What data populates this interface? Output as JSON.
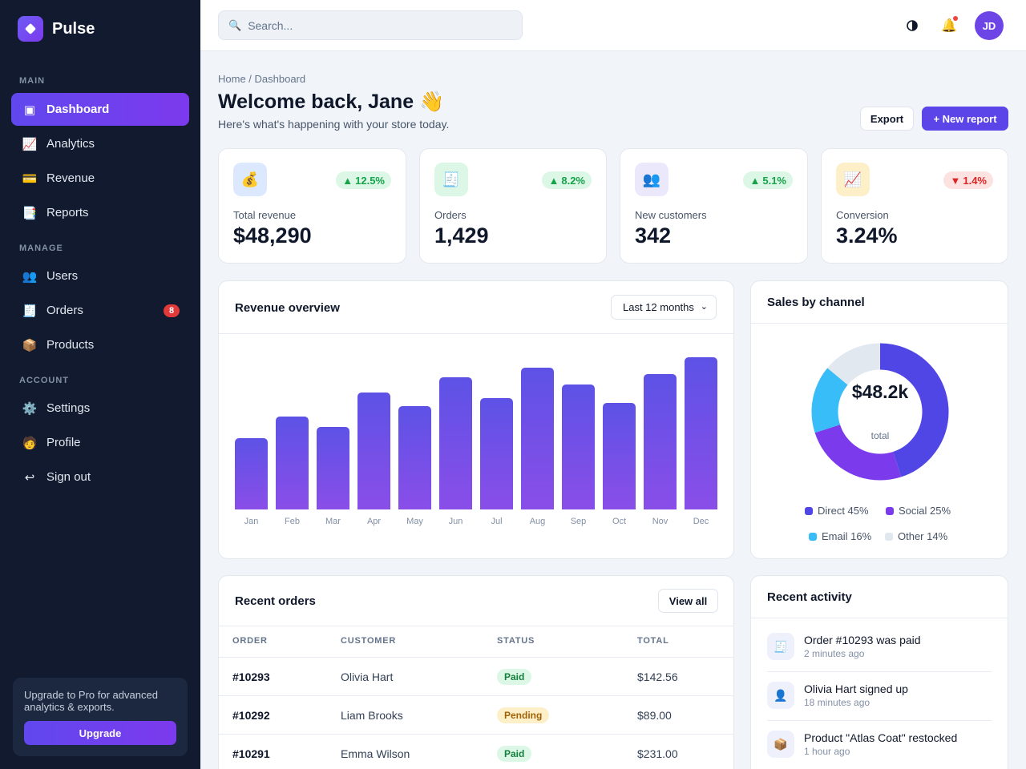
{
  "brand": {
    "name": "Pulse"
  },
  "sidebar": {
    "sections": [
      "MAIN",
      "MANAGE",
      "ACCOUNT"
    ],
    "items": [
      {
        "label": "Dashboard",
        "icon": "dashboard-icon",
        "active": true
      },
      {
        "label": "Analytics",
        "icon": "chart-icon"
      },
      {
        "label": "Revenue",
        "icon": "card-icon"
      },
      {
        "label": "Reports",
        "icon": "report-icon"
      },
      {
        "label": "Users",
        "icon": "users-icon"
      },
      {
        "label": "Orders",
        "icon": "receipt-icon",
        "badge": "8"
      },
      {
        "label": "Products",
        "icon": "box-icon"
      },
      {
        "label": "Settings",
        "icon": "gear-icon"
      },
      {
        "label": "Profile",
        "icon": "person-icon"
      },
      {
        "label": "Sign out",
        "icon": "sign-out-icon"
      }
    ],
    "upgrade": {
      "text": "Upgrade to Pro for advanced analytics & exports.",
      "button": "Upgrade"
    }
  },
  "topbar": {
    "search_placeholder": "Search...",
    "avatar_initials": "JD"
  },
  "header": {
    "breadcrumb": "Home / Dashboard",
    "title": "Welcome back, Jane 👋",
    "subtitle": "Here's what's happening with your store today.",
    "export_label": "Export",
    "new_report_label": "+ New report"
  },
  "stats": [
    {
      "label": "Total revenue",
      "value": "$48,290",
      "change": "12.5%",
      "direction": "up",
      "icon": "money-bag-icon"
    },
    {
      "label": "Orders",
      "value": "1,429",
      "change": "8.2%",
      "direction": "up",
      "icon": "receipt-icon"
    },
    {
      "label": "New customers",
      "value": "342",
      "change": "5.1%",
      "direction": "up",
      "icon": "users-icon"
    },
    {
      "label": "Conversion",
      "value": "3.24%",
      "change": "1.4%",
      "direction": "down",
      "icon": "chart-icon"
    }
  ],
  "revenue": {
    "title": "Revenue overview",
    "range_label": "Last 12 months"
  },
  "chart_data": {
    "type": "bar",
    "categories": [
      "Jan",
      "Feb",
      "Mar",
      "Apr",
      "May",
      "Jun",
      "Jul",
      "Aug",
      "Sep",
      "Oct",
      "Nov",
      "Dec"
    ],
    "values": [
      47,
      61,
      54,
      77,
      68,
      87,
      73,
      93,
      82,
      70,
      89,
      100
    ],
    "ylim": [
      0,
      100
    ],
    "grid": false
  },
  "channels": {
    "title": "Sales by channel",
    "total": "$48.2k",
    "total_label": "total",
    "items": [
      {
        "label": "Direct 45%",
        "value": 45,
        "color": "#4f46e5"
      },
      {
        "label": "Social 25%",
        "value": 25,
        "color": "#7c3aed"
      },
      {
        "label": "Email 16%",
        "value": 16,
        "color": "#38bdf8"
      },
      {
        "label": "Other 14%",
        "value": 14,
        "color": "#e2e8f0"
      }
    ]
  },
  "orders": {
    "title": "Recent orders",
    "view_all": "View all",
    "columns": [
      "ORDER",
      "CUSTOMER",
      "STATUS",
      "TOTAL"
    ],
    "rows": [
      {
        "order": "#10293",
        "customer": "Olivia Hart",
        "status": "Paid",
        "total": "$142.56"
      },
      {
        "order": "#10292",
        "customer": "Liam Brooks",
        "status": "Pending",
        "total": "$89.00"
      },
      {
        "order": "#10291",
        "customer": "Emma Wilson",
        "status": "Paid",
        "total": "$231.00"
      }
    ]
  },
  "activity": {
    "title": "Recent activity",
    "items": [
      {
        "title": "Order #10293 was paid",
        "time": "2 minutes ago",
        "icon": "receipt-icon"
      },
      {
        "title": "Olivia Hart signed up",
        "time": "18 minutes ago",
        "icon": "person-icon"
      },
      {
        "title": "Product \"Atlas Coat\" restocked",
        "time": "1 hour ago",
        "icon": "box-icon"
      }
    ]
  }
}
